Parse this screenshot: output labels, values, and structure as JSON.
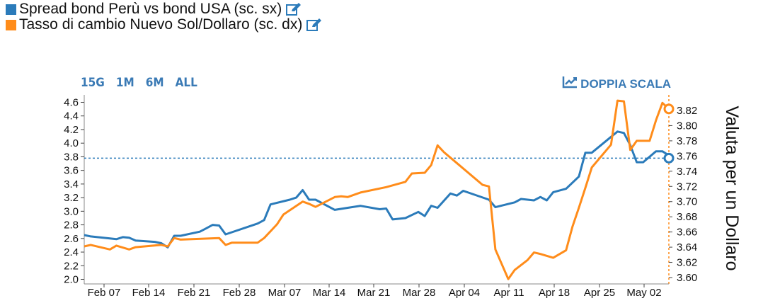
{
  "legend": [
    {
      "label": "Spread bond Perù vs bond USA (sc. sx)",
      "color": "#2b7bba",
      "icon": "edit-icon"
    },
    {
      "label": "Tasso di cambio Nuevo Sol/Dollaro (sc. dx)",
      "color": "#ff8c1a",
      "icon": "edit-icon"
    }
  ],
  "range_buttons": [
    "15G",
    "1M",
    "6M",
    "ALL"
  ],
  "dual_scale": {
    "label": "DOPPIA SCALA",
    "icon": "line-chart-icon"
  },
  "chart_data": {
    "type": "line",
    "x_tick_labels": [
      "Feb 07",
      "Feb 14",
      "Feb 21",
      "Feb 28",
      "Mar 07",
      "Mar 14",
      "Mar 21",
      "Mar 28",
      "Apr 04",
      "Apr 11",
      "Apr 18",
      "Apr 25",
      "May 02"
    ],
    "xlim": [
      "2022-02-03",
      "2022-05-05"
    ],
    "y_left": {
      "ticks": [
        "2.0",
        "2.2",
        "2.4",
        "2.6",
        "2.8",
        "3.0",
        "3.2",
        "3.4",
        "3.6",
        "3.8",
        "4.0",
        "4.2",
        "4.4",
        "4.6"
      ],
      "ylim": [
        1.98,
        4.72
      ]
    },
    "y_right": {
      "label": "Valuta per un Dollaro",
      "ticks": [
        "3.60",
        "3.62",
        "3.64",
        "3.66",
        "3.68",
        "3.70",
        "3.72",
        "3.74",
        "3.76",
        "3.78",
        "3.80",
        "3.82"
      ],
      "ylim": [
        3.598,
        3.832
      ]
    },
    "reference_line": {
      "axis": "left",
      "value": 3.78,
      "color": "#2b7bba"
    },
    "series": [
      {
        "name": "Spread bond Perù vs bond USA (sc. sx)",
        "axis": "left",
        "color": "#2b7bba",
        "points": [
          [
            "2022-02-03",
            2.65
          ],
          [
            "2022-02-04",
            2.63
          ],
          [
            "2022-02-07",
            2.6
          ],
          [
            "2022-02-08",
            2.59
          ],
          [
            "2022-02-09",
            2.62
          ],
          [
            "2022-02-10",
            2.61
          ],
          [
            "2022-02-11",
            2.57
          ],
          [
            "2022-02-14",
            2.55
          ],
          [
            "2022-02-15",
            2.53
          ],
          [
            "2022-02-16",
            2.47
          ],
          [
            "2022-02-17",
            2.64
          ],
          [
            "2022-02-18",
            2.64
          ],
          [
            "2022-02-21",
            2.7
          ],
          [
            "2022-02-22",
            2.75
          ],
          [
            "2022-02-23",
            2.8
          ],
          [
            "2022-02-24",
            2.79
          ],
          [
            "2022-02-25",
            2.66
          ],
          [
            "2022-03-02",
            2.82
          ],
          [
            "2022-03-03",
            2.87
          ],
          [
            "2022-03-04",
            3.1
          ],
          [
            "2022-03-07",
            3.17
          ],
          [
            "2022-03-08",
            3.2
          ],
          [
            "2022-03-09",
            3.31
          ],
          [
            "2022-03-10",
            3.17
          ],
          [
            "2022-03-11",
            3.17
          ],
          [
            "2022-03-14",
            3.02
          ],
          [
            "2022-03-16",
            3.05
          ],
          [
            "2022-03-18",
            3.08
          ],
          [
            "2022-03-21",
            3.03
          ],
          [
            "2022-03-22",
            3.04
          ],
          [
            "2022-03-23",
            2.88
          ],
          [
            "2022-03-25",
            2.9
          ],
          [
            "2022-03-27",
            2.99
          ],
          [
            "2022-03-28",
            2.93
          ],
          [
            "2022-03-29",
            3.08
          ],
          [
            "2022-03-30",
            3.05
          ],
          [
            "2022-04-01",
            3.26
          ],
          [
            "2022-04-02",
            3.23
          ],
          [
            "2022-04-03",
            3.3
          ],
          [
            "2022-04-07",
            3.17
          ],
          [
            "2022-04-08",
            3.06
          ],
          [
            "2022-04-11",
            3.13
          ],
          [
            "2022-04-12",
            3.18
          ],
          [
            "2022-04-13",
            3.17
          ],
          [
            "2022-04-14",
            3.16
          ],
          [
            "2022-04-15",
            3.21
          ],
          [
            "2022-04-16",
            3.16
          ],
          [
            "2022-04-17",
            3.28
          ],
          [
            "2022-04-19",
            3.33
          ],
          [
            "2022-04-21",
            3.51
          ],
          [
            "2022-04-22",
            3.86
          ],
          [
            "2022-04-23",
            3.86
          ],
          [
            "2022-04-27",
            4.17
          ],
          [
            "2022-04-28",
            4.15
          ],
          [
            "2022-04-29",
            3.97
          ],
          [
            "2022-04-30",
            3.72
          ],
          [
            "2022-05-01",
            3.72
          ],
          [
            "2022-05-03",
            3.88
          ],
          [
            "2022-05-04",
            3.88
          ],
          [
            "2022-05-05",
            3.82
          ],
          [
            "2022-05-05",
            3.78
          ]
        ]
      },
      {
        "name": "Tasso di cambio Nuevo Sol/Dollaro (sc. dx)",
        "axis": "right",
        "color": "#ff8c1a",
        "points": [
          [
            "2022-02-03",
            3.641
          ],
          [
            "2022-02-04",
            3.643
          ],
          [
            "2022-02-07",
            3.637
          ],
          [
            "2022-02-08",
            3.642
          ],
          [
            "2022-02-10",
            3.637
          ],
          [
            "2022-02-11",
            3.64
          ],
          [
            "2022-02-15",
            3.643
          ],
          [
            "2022-02-16",
            3.641
          ],
          [
            "2022-02-17",
            3.652
          ],
          [
            "2022-02-18",
            3.65
          ],
          [
            "2022-02-24",
            3.652
          ],
          [
            "2022-02-25",
            3.643
          ],
          [
            "2022-02-26",
            3.646
          ],
          [
            "2022-03-02",
            3.646
          ],
          [
            "2022-03-03",
            3.652
          ],
          [
            "2022-03-05",
            3.67
          ],
          [
            "2022-03-06",
            3.683
          ],
          [
            "2022-03-09",
            3.7
          ],
          [
            "2022-03-10",
            3.697
          ],
          [
            "2022-03-11",
            3.693
          ],
          [
            "2022-03-14",
            3.706
          ],
          [
            "2022-03-15",
            3.707
          ],
          [
            "2022-03-16",
            3.706
          ],
          [
            "2022-03-18",
            3.712
          ],
          [
            "2022-03-22",
            3.719
          ],
          [
            "2022-03-25",
            3.726
          ],
          [
            "2022-03-26",
            3.737
          ],
          [
            "2022-03-28",
            3.738
          ],
          [
            "2022-03-29",
            3.748
          ],
          [
            "2022-03-30",
            3.774
          ],
          [
            "2022-03-31",
            3.765
          ],
          [
            "2022-04-06",
            3.722
          ],
          [
            "2022-04-07",
            3.72
          ],
          [
            "2022-04-08",
            3.637
          ],
          [
            "2022-04-10",
            3.598
          ],
          [
            "2022-04-11",
            3.61
          ],
          [
            "2022-04-13",
            3.623
          ],
          [
            "2022-04-14",
            3.633
          ],
          [
            "2022-04-15",
            3.631
          ],
          [
            "2022-04-17",
            3.626
          ],
          [
            "2022-04-19",
            3.636
          ],
          [
            "2022-04-20",
            3.667
          ],
          [
            "2022-04-21",
            3.692
          ],
          [
            "2022-04-22",
            3.718
          ],
          [
            "2022-04-23",
            3.745
          ],
          [
            "2022-04-26",
            3.775
          ],
          [
            "2022-04-27",
            3.833
          ],
          [
            "2022-04-28",
            3.832
          ],
          [
            "2022-04-29",
            3.768
          ],
          [
            "2022-04-30",
            3.78
          ],
          [
            "2022-05-02",
            3.78
          ],
          [
            "2022-05-03",
            3.807
          ],
          [
            "2022-05-04",
            3.83
          ],
          [
            "2022-05-05",
            3.822
          ]
        ]
      }
    ],
    "grid": false,
    "legend_position": "top-left"
  }
}
